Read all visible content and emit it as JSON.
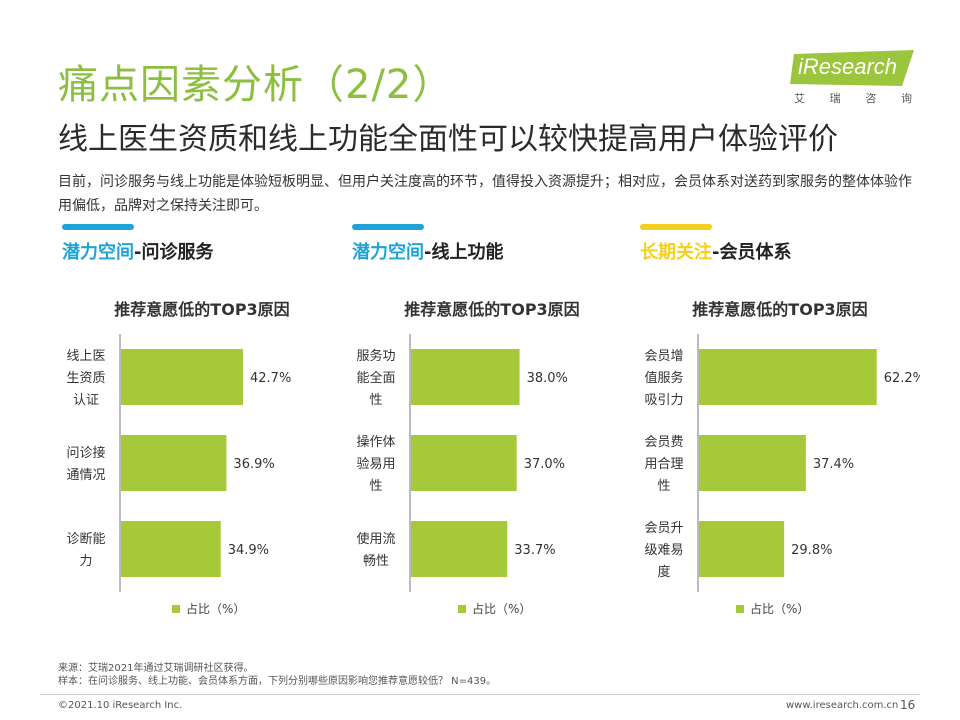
{
  "title": "痛点因素分析（2/2）",
  "subtitle": "线上医生资质和线上功能全面性可以较快提高用户体验评价",
  "description": "目前，问诊服务与线上功能是体验短板明显、但用户关注度高的环节，值得投入资源提升；相对应，会员体系对送药到家服务的整体体验作用偏低，品牌对之保持关注即可。",
  "logo": {
    "brand": "iResearch",
    "cn": [
      "艾",
      "瑞",
      "咨",
      "询"
    ]
  },
  "colors": {
    "green": "#8cbf3f",
    "bar": "#a6c93a",
    "blue": "#1fa3d6",
    "yellow": "#f5cf1d"
  },
  "panels": [
    {
      "tag": "潜力空间",
      "tag_color": "#1fa3d6",
      "rest": "-问诊服务",
      "chart_title": "推荐意愿低的TOP3原因",
      "legend": "占比（%）"
    },
    {
      "tag": "潜力空间",
      "tag_color": "#1fa3d6",
      "rest": "-线上功能",
      "chart_title": "推荐意愿低的TOP3原因",
      "legend": "占比（%）"
    },
    {
      "tag": "长期关注",
      "tag_color": "#f5cf1d",
      "rest": "-会员体系",
      "chart_title": "推荐意愿低的TOP3原因",
      "legend": "占比（%）"
    }
  ],
  "chart_data": [
    {
      "type": "bar",
      "orientation": "horizontal",
      "title": "推荐意愿低的TOP3原因",
      "categories": [
        [
          "线上医",
          "生资质",
          "认证"
        ],
        [
          "问诊接",
          "通情况"
        ],
        [
          "诊断能",
          "力"
        ]
      ],
      "series": [
        {
          "name": "占比（%）",
          "values": [
            42.7,
            36.9,
            34.9
          ]
        }
      ],
      "value_labels": [
        "42.7%",
        "36.9%",
        "34.9%"
      ],
      "xlim": [
        0,
        70
      ]
    },
    {
      "type": "bar",
      "orientation": "horizontal",
      "title": "推荐意愿低的TOP3原因",
      "categories": [
        [
          "服务功",
          "能全面",
          "性"
        ],
        [
          "操作体",
          "验易用",
          "性"
        ],
        [
          "使用流",
          "畅性"
        ]
      ],
      "series": [
        {
          "name": "占比（%）",
          "values": [
            38.0,
            37.0,
            33.7
          ]
        }
      ],
      "value_labels": [
        "38.0%",
        "37.0%",
        "33.7%"
      ],
      "xlim": [
        0,
        70
      ]
    },
    {
      "type": "bar",
      "orientation": "horizontal",
      "title": "推荐意愿低的TOP3原因",
      "categories": [
        [
          "会员增",
          "值服务",
          "吸引力"
        ],
        [
          "会员费",
          "用合理",
          "性"
        ],
        [
          "会员升",
          "级难易",
          "度"
        ]
      ],
      "series": [
        {
          "name": "占比（%）",
          "values": [
            62.2,
            37.4,
            29.8
          ]
        }
      ],
      "value_labels": [
        "62.2%",
        "37.4%",
        "29.8%"
      ],
      "xlim": [
        0,
        70
      ]
    }
  ],
  "footer": {
    "source": "来源：艾瑞2021年通过艾瑞调研社区获得。",
    "sample": "样本：在问诊服务、线上功能、会员体系方面，下列分别哪些原因影响您推荐意愿较低？ N=439。",
    "copyright": "©2021.10 iResearch Inc.",
    "site": "www.iresearch.com.cn",
    "page": "16"
  }
}
